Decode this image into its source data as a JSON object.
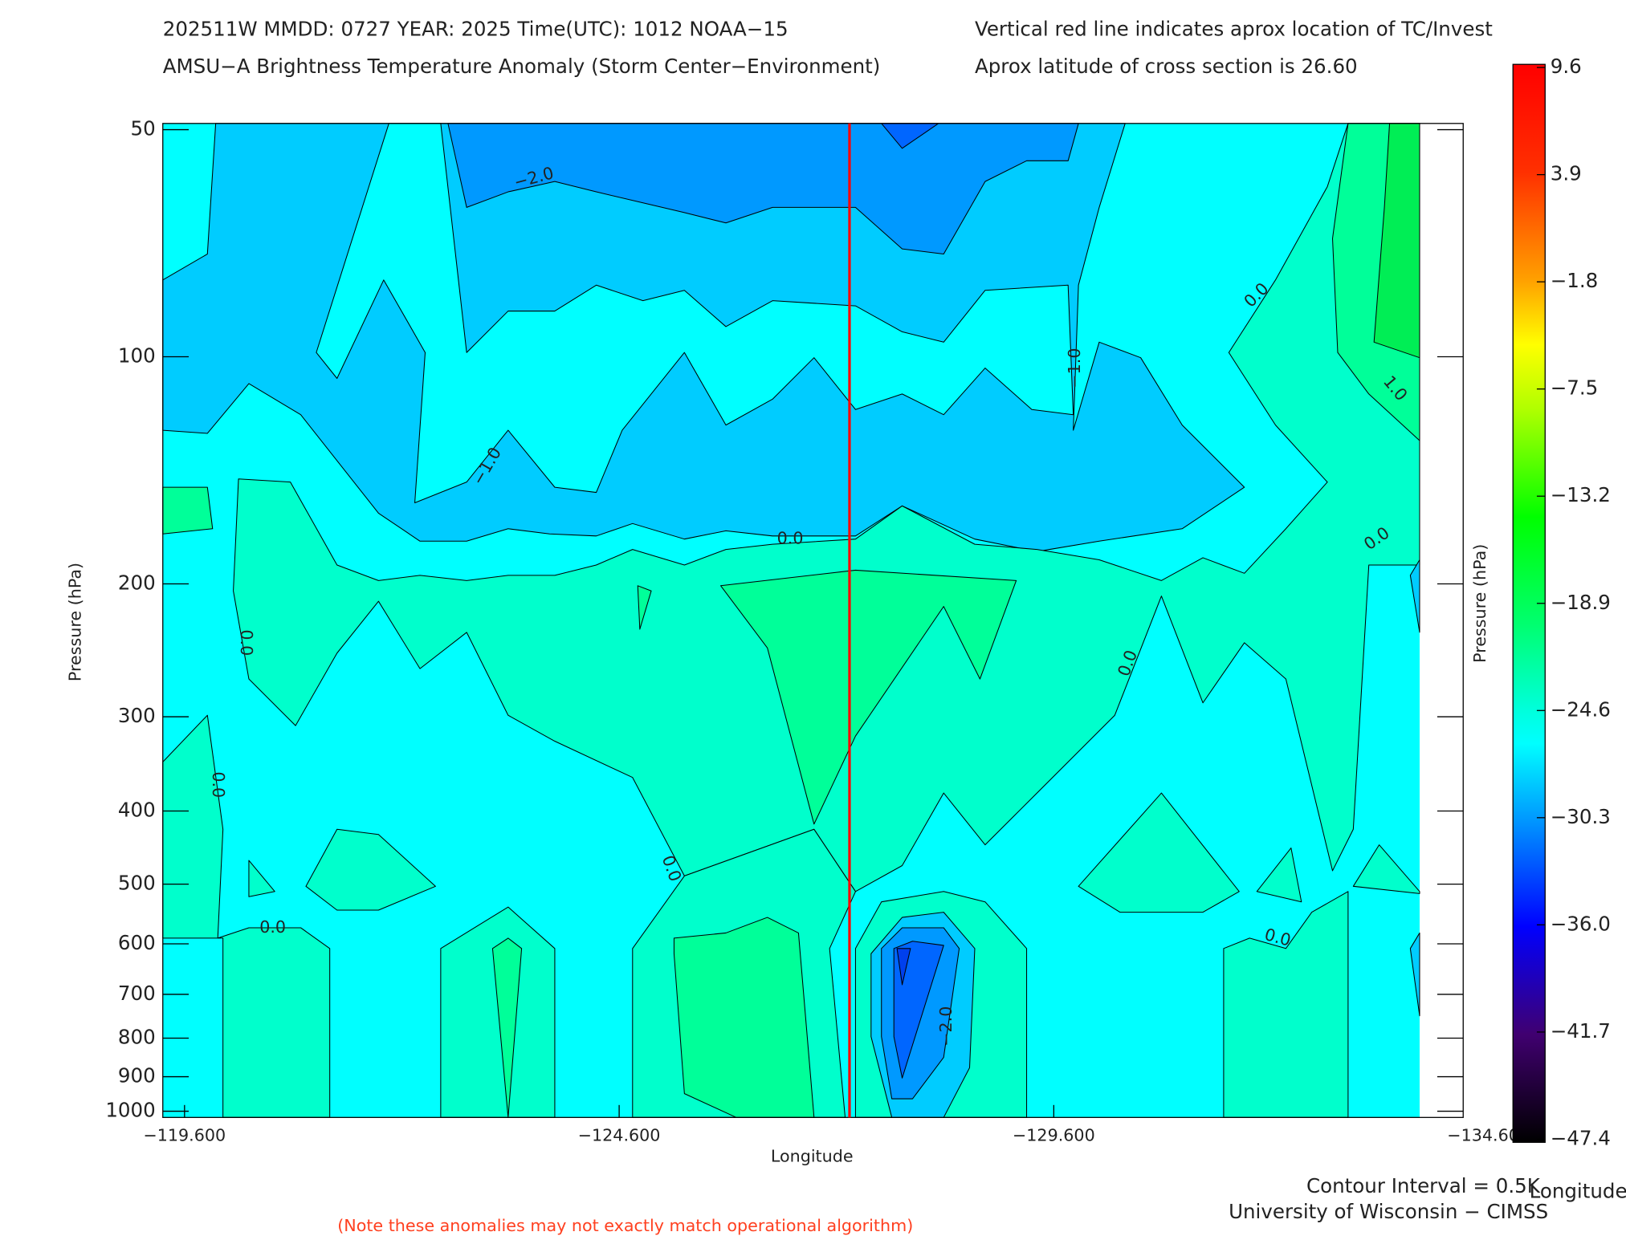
{
  "chart_data": {
    "type": "contour",
    "title": "202511W  MMDD: 0727 YEAR: 2025 Time(UTC): 1012 NOAA−15",
    "subtitle": "AMSU−A Brightness Temperature Anomaly (Storm Center−Environment)",
    "annotation_right_1": "Vertical red line indicates aprox location of TC/Invest",
    "annotation_right_2": "Aprox latitude of cross section is 26.60",
    "xlabel": "Longitude",
    "ylabel": "Pressure (hPa)",
    "y2label": "Pressure (hPa)",
    "xlim": [
      -119.35,
      -134.31
    ],
    "xticks": [
      {
        "value": -119.6,
        "label": "−119.600"
      },
      {
        "value": -124.6,
        "label": "−124.600"
      },
      {
        "value": -129.6,
        "label": "−129.600"
      },
      {
        "value": -134.6,
        "label": "−134.600"
      }
    ],
    "ylim": [
      50,
      1000
    ],
    "ylog": true,
    "yticks": [
      50,
      100,
      200,
      300,
      400,
      500,
      600,
      700,
      800,
      900,
      1000
    ],
    "storm_longitude": -127.25,
    "storm_line_color": "#ff0000",
    "colorbar": {
      "lim": [
        -47.4,
        9.6
      ],
      "ticks": [
        9.6,
        3.9,
        {
          "value": -1.8,
          "label": "−1.8"
        },
        {
          "value": -7.5,
          "label": "−7.5"
        },
        {
          "value": -13.2,
          "label": "−13.2"
        },
        {
          "value": -18.9,
          "label": "−18.9"
        },
        {
          "value": -24.6,
          "label": "−24.6"
        },
        {
          "value": -30.3,
          "label": "−30.3"
        },
        {
          "value": -36.0,
          "label": "−36.0"
        },
        {
          "value": -41.7,
          "label": "−41.7"
        },
        {
          "value": -47.4,
          "label": "−47.4"
        }
      ]
    },
    "contour_labels": [
      {
        "value": -2.0,
        "label": "−2.0"
      },
      {
        "value": -1.0,
        "label": "−1.0"
      },
      {
        "value": -1.0,
        "label": "−1.0"
      },
      {
        "value": 0.0,
        "label": "0.0"
      },
      {
        "value": 1.0,
        "label": "1.0"
      },
      {
        "value": 0.0,
        "label": "0.0"
      },
      {
        "value": 0.0,
        "label": "0.0"
      },
      {
        "value": 0.0,
        "label": "0.0"
      },
      {
        "value": 0.0,
        "label": "0.0"
      },
      {
        "value": 0.0,
        "label": "0.0"
      },
      {
        "value": 0.0,
        "label": "0.0"
      },
      {
        "value": 0.0,
        "label": "0.0"
      },
      {
        "value": 0.0,
        "label": "0.0"
      },
      {
        "value": -2.0,
        "label": "−2.0"
      }
    ],
    "contour_interval_text": "Contour Interval = 0.5K",
    "colorbar_xlabel": "Longitude",
    "credit": "University of Wisconsin − CIMSS",
    "note": "(Note these anomalies may not exactly match operational algorithm)"
  }
}
